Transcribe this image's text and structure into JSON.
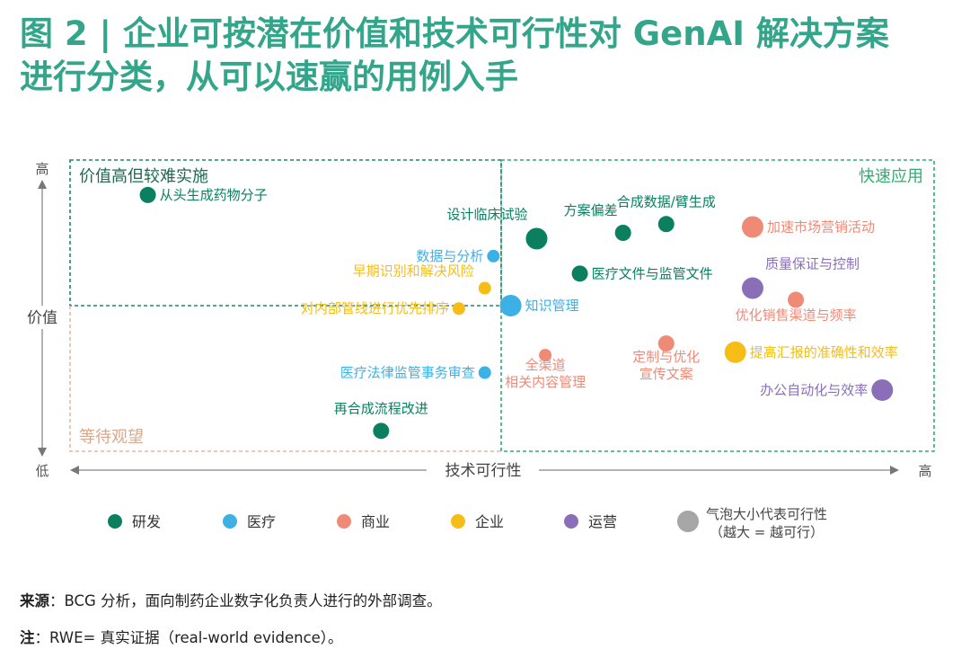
{
  "title": {
    "line1": "图 2 | 企业可按潜在价值和技术可行性对 GenAI 解决方案",
    "line2": "进行分类，从可以速赢的用例入手"
  },
  "chart_data": {
    "type": "scatter",
    "xlabel": "技术可行性",
    "ylabel": "价值",
    "x_low": "低",
    "x_high": "高",
    "y_high": "高",
    "quadrants": {
      "top_left": "价值高但较难实施",
      "top_right": "快速应用",
      "bottom_left": "等待观望"
    },
    "colors": {
      "研发": "#0a8060",
      "医疗": "#3db0e6",
      "商业": "#ef8a77",
      "企业": "#f6bd16",
      "运营": "#8a6fb8",
      "size": "#a6a6a6"
    },
    "legend": [
      {
        "name": "研发",
        "key": "研发"
      },
      {
        "name": "医疗",
        "key": "医疗"
      },
      {
        "name": "商业",
        "key": "商业"
      },
      {
        "name": "企业",
        "key": "企业"
      },
      {
        "name": "运营",
        "key": "运营"
      }
    ],
    "size_legend": {
      "line1": "气泡大小代表可行性",
      "line2": "（越大 = 越可行）"
    },
    "points": [
      {
        "label": "从头生成药物分子",
        "category": "研发",
        "x": 0.09,
        "y": 0.88,
        "size": 2
      },
      {
        "label": "设计临床试验",
        "category": "研发",
        "x": 0.54,
        "y": 0.73,
        "size": 3
      },
      {
        "label": "方案偏差",
        "category": "研发",
        "x": 0.64,
        "y": 0.75,
        "size": 2
      },
      {
        "label": "合成数据/臂生成",
        "category": "研发",
        "x": 0.69,
        "y": 0.78,
        "size": 2
      },
      {
        "label": "医疗文件与监管文件",
        "category": "研发",
        "x": 0.59,
        "y": 0.61,
        "size": 2
      },
      {
        "label": "再合成流程改进",
        "category": "研发",
        "x": 0.36,
        "y": 0.07,
        "size": 2
      },
      {
        "label": "数据与分析",
        "category": "医疗",
        "x": 0.49,
        "y": 0.67,
        "size": 1
      },
      {
        "label": "知识管理",
        "category": "医疗",
        "x": 0.51,
        "y": 0.5,
        "size": 3
      },
      {
        "label": "医疗法律监管事务审查",
        "category": "医疗",
        "x": 0.48,
        "y": 0.27,
        "size": 1
      },
      {
        "label": "加速市场营销活动",
        "category": "商业",
        "x": 0.79,
        "y": 0.77,
        "size": 3
      },
      {
        "label": "优化销售渠道与频率",
        "category": "商业",
        "x": 0.84,
        "y": 0.52,
        "size": 2
      },
      {
        "label": "定制与优化宣传文案",
        "category": "商业",
        "x": 0.69,
        "y": 0.37,
        "size": 2
      },
      {
        "label": "全渠道相关内容管理",
        "category": "商业",
        "x": 0.55,
        "y": 0.33,
        "size": 1
      },
      {
        "label": "早期识别和解决风险",
        "category": "企业",
        "x": 0.48,
        "y": 0.56,
        "size": 1
      },
      {
        "label": "对内部管线进行优先排序",
        "category": "企业",
        "x": 0.45,
        "y": 0.49,
        "size": 1
      },
      {
        "label": "提高汇报的准确性和效率",
        "category": "企业",
        "x": 0.77,
        "y": 0.34,
        "size": 3
      },
      {
        "label": "质量保证与控制",
        "category": "运营",
        "x": 0.79,
        "y": 0.56,
        "size": 3
      },
      {
        "label": "办公自动化与效率",
        "category": "运营",
        "x": 0.94,
        "y": 0.21,
        "size": 3
      }
    ]
  },
  "footer": {
    "source_label": "来源",
    "source_text": "：BCG 分析，面向制药企业数字化负责人进行的外部调查。",
    "note_label": "注",
    "note_text": "：RWE= 真实证据（real-world evidence）。"
  }
}
